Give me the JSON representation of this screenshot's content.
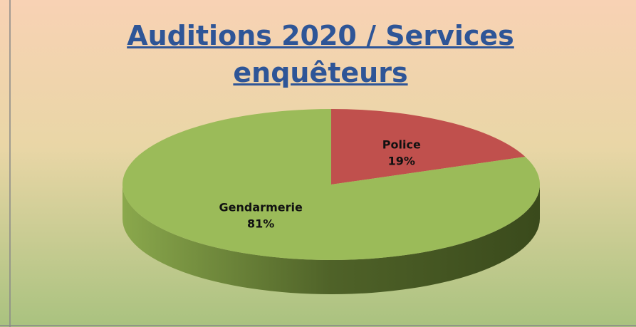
{
  "chart_data": {
    "type": "pie",
    "title": "Auditions 2020 / Services enquêteurs",
    "categories": [
      "Police",
      "Gendarmerie"
    ],
    "values": [
      19,
      81
    ],
    "value_labels": [
      "19%",
      "81%"
    ],
    "colors": [
      "#c0504d",
      "#9bbb59"
    ]
  }
}
